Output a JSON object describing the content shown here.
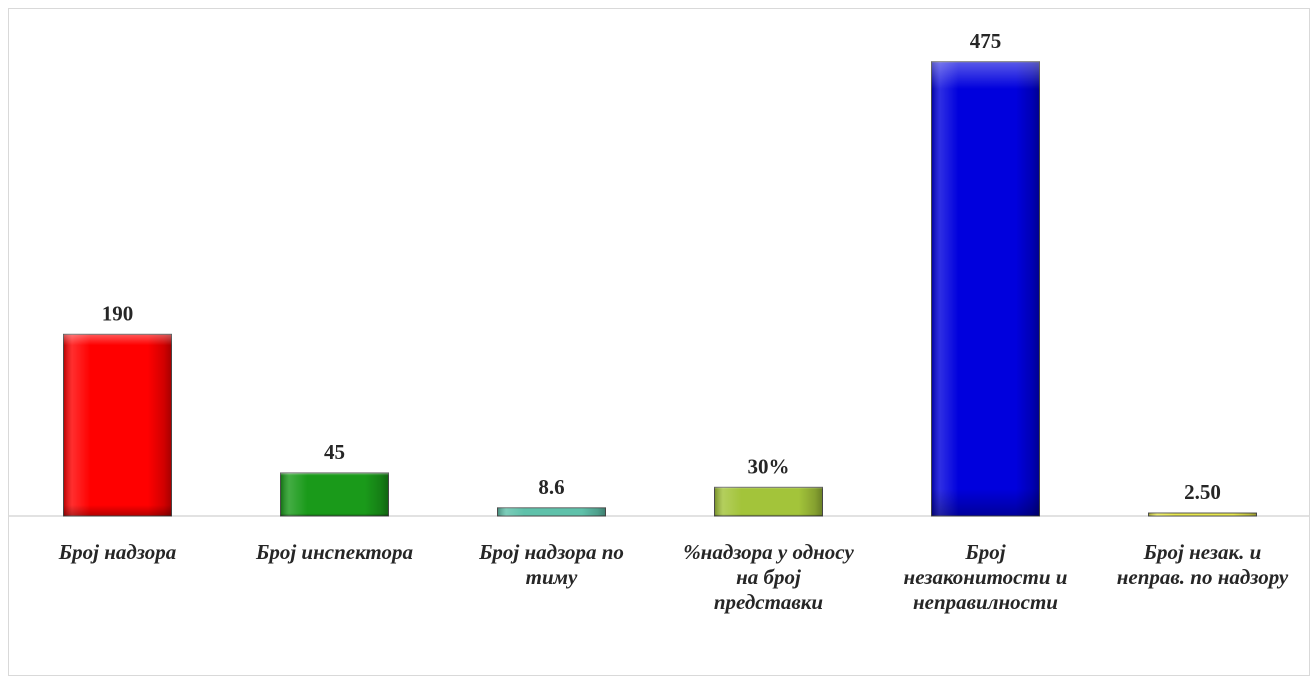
{
  "chart_data": {
    "type": "bar",
    "categories": [
      "Број надзора",
      "Број инспектора",
      "Број надзора по тиму",
      "% надзора у односу на број представки",
      "Број незаконитости и неправилности",
      "Број незак. и неправ. по надзору"
    ],
    "category_lines": [
      [
        "Број надзора"
      ],
      [
        "Број инспектора"
      ],
      [
        "Број надзора по",
        "тиму"
      ],
      [
        "%надзора у односу",
        "на број",
        "представки"
      ],
      [
        "Број",
        "незаконитости и",
        "неправилности"
      ],
      [
        "Број незак. и",
        "неправ. по надзору"
      ]
    ],
    "values": [
      190,
      45,
      8.6,
      30,
      475,
      2.5
    ],
    "data_labels": [
      "190",
      "45",
      "8.6",
      "30%",
      "475",
      "2.50"
    ],
    "colors": [
      "#ff0000",
      "#1a9a1a",
      "#5fc1aa",
      "#a3c43a",
      "#0000dd",
      "#e8e84a"
    ],
    "ylim": [
      0,
      480
    ],
    "grid": false,
    "legend": "none",
    "title": "",
    "xlabel": "",
    "ylabel": ""
  }
}
